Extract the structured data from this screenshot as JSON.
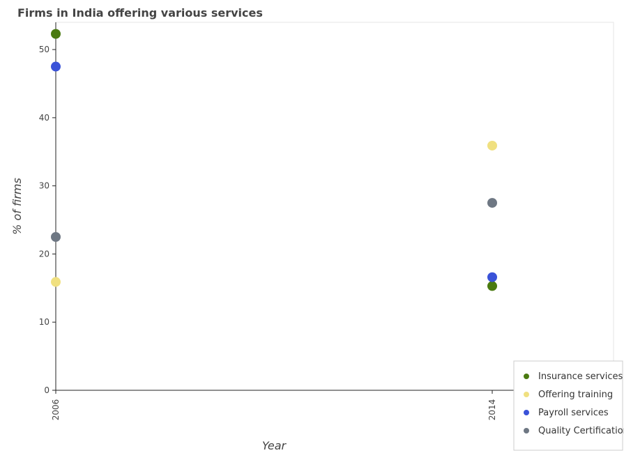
{
  "chart_data": {
    "type": "scatter",
    "title": "Firms in India offering various services",
    "xlabel": "Year",
    "ylabel": "% of firms",
    "categories": [
      "2006",
      "2014"
    ],
    "ylim": [
      0,
      54
    ],
    "yticks": [
      0,
      10,
      20,
      30,
      40,
      50
    ],
    "grid": false,
    "legend_position": "bottom-right",
    "series": [
      {
        "name": "Insurance services",
        "color": "#4a7a10",
        "values": [
          52.3,
          15.3
        ]
      },
      {
        "name": "Offering training",
        "color": "#f0e080",
        "values": [
          15.9,
          35.9
        ]
      },
      {
        "name": "Payroll services",
        "color": "#3a52d8",
        "values": [
          47.5,
          16.6
        ]
      },
      {
        "name": "Quality Certification",
        "color": "#6e7783",
        "values": [
          22.5,
          27.5
        ]
      }
    ]
  }
}
